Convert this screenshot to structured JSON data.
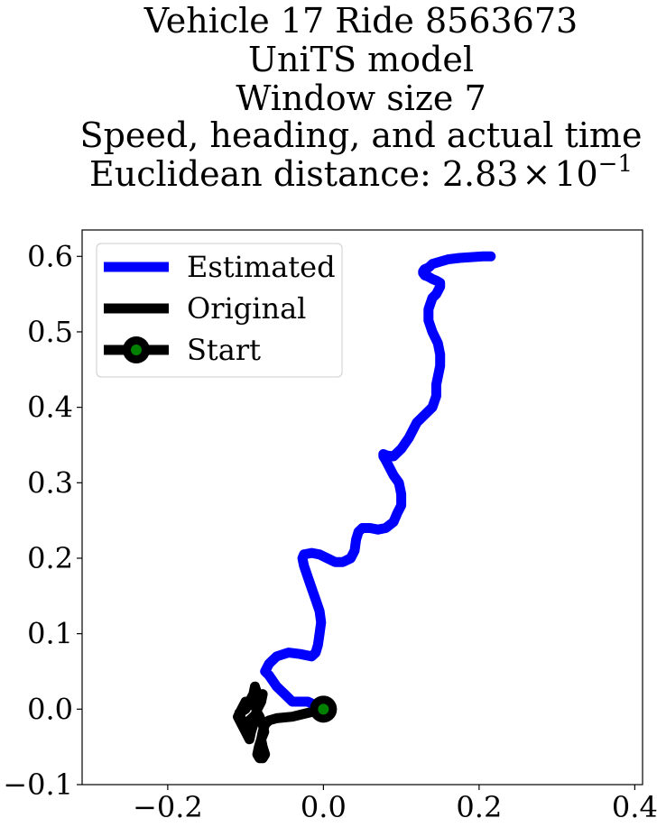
{
  "chart_data": {
    "type": "line",
    "title_lines": [
      "Vehicle 17 Ride 8563673",
      "UniTS model",
      "Window size 7",
      "Speed, heading, and actual time"
    ],
    "title_metric_prefix": "Euclidean distance: ",
    "title_metric_mantissa": "2.83",
    "title_metric_times": "×",
    "title_metric_base": "10",
    "title_metric_exponent": "−1",
    "xlabel": "",
    "ylabel": "",
    "xlim": [
      -0.31,
      0.41
    ],
    "ylim": [
      -0.1,
      0.635
    ],
    "xticks": [
      -0.2,
      0.0,
      0.2,
      0.4
    ],
    "xtick_labels": [
      "−0.2",
      "0.0",
      "0.2",
      "0.4"
    ],
    "yticks": [
      -0.1,
      0.0,
      0.1,
      0.2,
      0.3,
      0.4,
      0.5,
      0.6
    ],
    "ytick_labels": [
      "−0.1",
      "0.0",
      "0.1",
      "0.2",
      "0.3",
      "0.4",
      "0.5",
      "0.6"
    ],
    "grid": false,
    "legend_position": "top-left",
    "legend": [
      "Estimated",
      "Original",
      "Start"
    ],
    "series": [
      {
        "name": "Estimated",
        "color": "#0000ff",
        "x": [
          0.0,
          -0.02,
          -0.04,
          -0.05,
          -0.06,
          -0.07,
          -0.075,
          -0.07,
          -0.06,
          -0.045,
          -0.03,
          -0.015,
          -0.01,
          -0.007,
          -0.005,
          -0.003,
          -0.005,
          -0.01,
          -0.015,
          -0.02,
          -0.025,
          -0.027,
          -0.025,
          -0.015,
          -0.005,
          0.005,
          0.015,
          0.025,
          0.035,
          0.04,
          0.042,
          0.045,
          0.05,
          0.06,
          0.07,
          0.08,
          0.09,
          0.095,
          0.1,
          0.1,
          0.097,
          0.09,
          0.085,
          0.08,
          0.077,
          0.077,
          0.082,
          0.09,
          0.1,
          0.11,
          0.115,
          0.12,
          0.13,
          0.14,
          0.145,
          0.145,
          0.148,
          0.15,
          0.15,
          0.147,
          0.14,
          0.135,
          0.135,
          0.14,
          0.145,
          0.15,
          0.15,
          0.145,
          0.14,
          0.135,
          0.13,
          0.128,
          0.128,
          0.13,
          0.135,
          0.14,
          0.15,
          0.16,
          0.175,
          0.19,
          0.205,
          0.215
        ],
        "y": [
          0.0,
          0.01,
          0.01,
          0.02,
          0.03,
          0.045,
          0.05,
          0.06,
          0.07,
          0.075,
          0.073,
          0.07,
          0.075,
          0.085,
          0.1,
          0.115,
          0.13,
          0.145,
          0.16,
          0.175,
          0.19,
          0.2,
          0.205,
          0.207,
          0.205,
          0.2,
          0.195,
          0.195,
          0.2,
          0.21,
          0.225,
          0.235,
          0.24,
          0.24,
          0.238,
          0.24,
          0.248,
          0.26,
          0.27,
          0.285,
          0.3,
          0.31,
          0.32,
          0.33,
          0.335,
          0.338,
          0.336,
          0.335,
          0.345,
          0.36,
          0.37,
          0.38,
          0.39,
          0.4,
          0.415,
          0.43,
          0.445,
          0.455,
          0.47,
          0.485,
          0.5,
          0.515,
          0.53,
          0.545,
          0.55,
          0.56,
          0.565,
          0.568,
          0.57,
          0.573,
          0.575,
          0.578,
          0.58,
          0.583,
          0.585,
          0.59,
          0.593,
          0.596,
          0.598,
          0.599,
          0.6,
          0.6
        ]
      },
      {
        "name": "Original",
        "color": "#000000",
        "x": [
          0.0,
          -0.02,
          -0.04,
          -0.06,
          -0.07,
          -0.075,
          -0.078,
          -0.08,
          -0.078,
          -0.075,
          -0.078,
          -0.082,
          -0.085,
          -0.083,
          -0.08,
          -0.076,
          -0.078,
          -0.082,
          -0.085,
          -0.09,
          -0.095,
          -0.1,
          -0.105,
          -0.108,
          -0.1,
          -0.095,
          -0.09,
          -0.088,
          -0.085,
          -0.083,
          -0.085,
          -0.088,
          -0.09,
          -0.093,
          -0.095,
          -0.1,
          -0.105,
          -0.11,
          -0.105,
          -0.1,
          -0.09,
          -0.085,
          -0.08,
          -0.078
        ],
        "y": [
          0.0,
          -0.005,
          -0.01,
          -0.012,
          -0.015,
          -0.02,
          -0.03,
          -0.04,
          -0.05,
          -0.06,
          -0.065,
          -0.065,
          -0.06,
          -0.05,
          -0.04,
          -0.03,
          -0.02,
          -0.01,
          -0.005,
          -0.01,
          -0.015,
          -0.02,
          -0.015,
          -0.005,
          0.0,
          0.01,
          0.02,
          0.03,
          0.02,
          0.01,
          0.0,
          -0.01,
          -0.02,
          -0.03,
          -0.04,
          -0.03,
          -0.02,
          -0.01,
          0.0,
          0.01,
          0.005,
          0.0,
          0.01,
          0.02
        ]
      }
    ],
    "start": {
      "name": "Start",
      "x": 0.0,
      "y": 0.0,
      "marker_color": "#008000",
      "edge_color": "#000000"
    }
  }
}
